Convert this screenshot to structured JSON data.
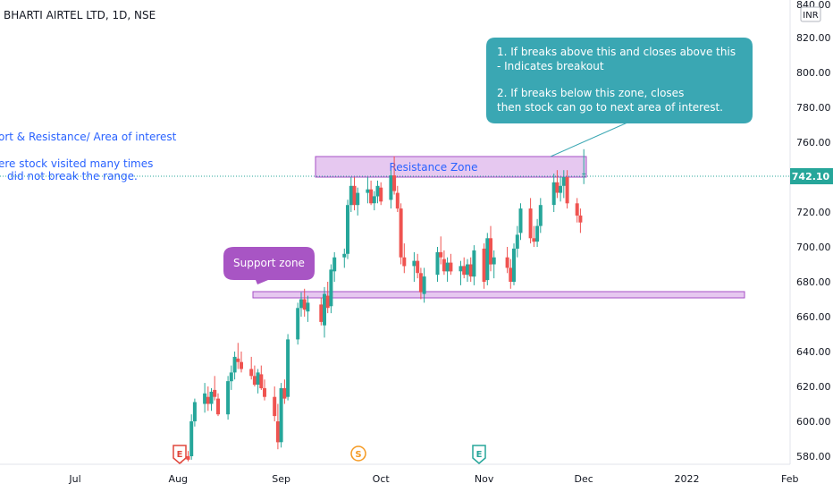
{
  "header": {
    "symbol_title": "BHARTI AIRTEL LTD, 1D, NSE"
  },
  "annotations": {
    "left_title": "ort & Resistance/ Area of interest",
    "left_note_line1": "ere stock visited many times",
    "left_note_line2": "did not break the range.",
    "resistance_label": "Resistance Zone",
    "support_label": "Support zone",
    "callout_line1": "1. If breaks above this and closes above this",
    "callout_line2": "- Indicates breakout",
    "callout_line3": "2. If breaks below this zone, closes",
    "callout_line4": "then stock can go to next area of interest."
  },
  "price_axis": {
    "currency": "INR",
    "top_label": "840.00",
    "last_price": "742.10",
    "ticks": [
      "820.00",
      "800.00",
      "780.00",
      "760.00",
      "740.00",
      "720.00",
      "700.00",
      "680.00",
      "660.00",
      "640.00",
      "620.00",
      "600.00",
      "580.00"
    ]
  },
  "time_axis": {
    "labels": [
      "Jul",
      "Aug",
      "Sep",
      "Oct",
      "Nov",
      "Dec",
      "2022",
      "Feb"
    ]
  },
  "event_markers": [
    {
      "letter": "E",
      "type": "earnings"
    },
    {
      "letter": "S",
      "type": "split"
    },
    {
      "letter": "E",
      "type": "earnings"
    }
  ],
  "colors": {
    "up_candle": "#26a69a",
    "down_candle": "#ef5350",
    "zone_fill": "#e6c8f0",
    "zone_stroke": "#a64fc6",
    "support_bubble": "#a855c4",
    "callout_fill": "#3aa7b3",
    "annotation_text": "#2962ff",
    "price_badge": "#26a69a"
  },
  "chart_data": {
    "type": "candlestick",
    "title": "BHARTI AIRTEL LTD, 1D, NSE",
    "ylim": [
      576,
      840
    ],
    "x_ticks": [
      "Jul",
      "Aug",
      "Sep",
      "Oct",
      "Nov",
      "Dec",
      "2022",
      "Feb"
    ],
    "y_ticks": [
      580,
      600,
      620,
      640,
      660,
      680,
      700,
      720,
      740,
      760,
      780,
      800,
      820
    ],
    "last_price": 742.1,
    "zones": [
      {
        "name": "Resistance Zone",
        "from": 740,
        "to": 752
      },
      {
        "name": "Support zone",
        "from": 672,
        "to": 676
      }
    ],
    "candles": [
      {
        "d": "2021-08-02",
        "o": 579,
        "h": 582,
        "l": 576,
        "c": 578
      },
      {
        "d": "2021-08-04",
        "o": 580,
        "h": 583,
        "l": 577,
        "c": 578
      },
      {
        "d": "2021-08-05",
        "o": 580,
        "h": 604,
        "l": 578,
        "c": 600
      },
      {
        "d": "2021-08-06",
        "o": 600,
        "h": 613,
        "l": 597,
        "c": 611
      },
      {
        "d": "2021-08-09",
        "o": 610,
        "h": 622,
        "l": 605,
        "c": 616
      },
      {
        "d": "2021-08-10",
        "o": 614,
        "h": 620,
        "l": 606,
        "c": 610
      },
      {
        "d": "2021-08-11",
        "o": 610,
        "h": 619,
        "l": 606,
        "c": 617
      },
      {
        "d": "2021-08-12",
        "o": 618,
        "h": 626,
        "l": 612,
        "c": 614
      },
      {
        "d": "2021-08-13",
        "o": 613,
        "h": 616,
        "l": 603,
        "c": 604
      },
      {
        "d": "2021-08-16",
        "o": 604,
        "h": 626,
        "l": 601,
        "c": 623
      },
      {
        "d": "2021-08-17",
        "o": 623,
        "h": 632,
        "l": 618,
        "c": 628
      },
      {
        "d": "2021-08-18",
        "o": 628,
        "h": 640,
        "l": 624,
        "c": 637
      },
      {
        "d": "2021-08-19",
        "o": 636,
        "h": 645,
        "l": 630,
        "c": 634
      },
      {
        "d": "2021-08-20",
        "o": 634,
        "h": 640,
        "l": 628,
        "c": 630
      },
      {
        "d": "2021-08-23",
        "o": 630,
        "h": 637,
        "l": 624,
        "c": 626
      },
      {
        "d": "2021-08-24",
        "o": 626,
        "h": 632,
        "l": 620,
        "c": 621
      },
      {
        "d": "2021-08-25",
        "o": 621,
        "h": 630,
        "l": 616,
        "c": 628
      },
      {
        "d": "2021-08-26",
        "o": 627,
        "h": 632,
        "l": 618,
        "c": 619
      },
      {
        "d": "2021-08-27",
        "o": 619,
        "h": 624,
        "l": 612,
        "c": 614
      },
      {
        "d": "2021-08-30",
        "o": 614,
        "h": 620,
        "l": 600,
        "c": 603
      },
      {
        "d": "2021-08-31",
        "o": 600,
        "h": 610,
        "l": 584,
        "c": 588
      },
      {
        "d": "2021-09-01",
        "o": 588,
        "h": 622,
        "l": 585,
        "c": 619
      },
      {
        "d": "2021-09-02",
        "o": 619,
        "h": 624,
        "l": 610,
        "c": 613
      },
      {
        "d": "2021-09-03",
        "o": 614,
        "h": 650,
        "l": 612,
        "c": 647
      },
      {
        "d": "2021-09-06",
        "o": 647,
        "h": 668,
        "l": 644,
        "c": 665
      },
      {
        "d": "2021-09-07",
        "o": 665,
        "h": 674,
        "l": 660,
        "c": 670
      },
      {
        "d": "2021-09-08",
        "o": 670,
        "h": 676,
        "l": 660,
        "c": 664
      },
      {
        "d": "2021-09-09",
        "o": 663,
        "h": 672,
        "l": 657,
        "c": 668
      },
      {
        "d": "2021-09-13",
        "o": 667,
        "h": 671,
        "l": 655,
        "c": 657
      },
      {
        "d": "2021-09-14",
        "o": 655,
        "h": 677,
        "l": 648,
        "c": 673
      },
      {
        "d": "2021-09-15",
        "o": 672,
        "h": 680,
        "l": 662,
        "c": 665
      },
      {
        "d": "2021-09-16",
        "o": 666,
        "h": 690,
        "l": 662,
        "c": 687
      },
      {
        "d": "2021-09-17",
        "o": 686,
        "h": 697,
        "l": 680,
        "c": 694
      },
      {
        "d": "2021-09-20",
        "o": 694,
        "h": 699,
        "l": 688,
        "c": 696
      },
      {
        "d": "2021-09-21",
        "o": 696,
        "h": 727,
        "l": 693,
        "c": 724
      },
      {
        "d": "2021-09-22",
        "o": 724,
        "h": 740,
        "l": 720,
        "c": 735
      },
      {
        "d": "2021-09-23",
        "o": 735,
        "h": 740,
        "l": 721,
        "c": 724
      },
      {
        "d": "2021-09-24",
        "o": 724,
        "h": 734,
        "l": 718,
        "c": 731
      },
      {
        "d": "2021-09-27",
        "o": 731,
        "h": 740,
        "l": 725,
        "c": 733
      },
      {
        "d": "2021-09-28",
        "o": 733,
        "h": 738,
        "l": 724,
        "c": 725
      },
      {
        "d": "2021-09-29",
        "o": 725,
        "h": 732,
        "l": 721,
        "c": 729
      },
      {
        "d": "2021-09-30",
        "o": 729,
        "h": 738,
        "l": 725,
        "c": 735
      },
      {
        "d": "2021-10-01",
        "o": 734,
        "h": 737,
        "l": 724,
        "c": 726
      },
      {
        "d": "2021-10-04",
        "o": 727,
        "h": 744,
        "l": 722,
        "c": 741
      },
      {
        "d": "2021-10-05",
        "o": 741,
        "h": 752,
        "l": 730,
        "c": 732
      },
      {
        "d": "2021-10-06",
        "o": 731,
        "h": 735,
        "l": 720,
        "c": 722
      },
      {
        "d": "2021-10-07",
        "o": 722,
        "h": 725,
        "l": 690,
        "c": 694
      },
      {
        "d": "2021-10-08",
        "o": 694,
        "h": 702,
        "l": 685,
        "c": 689
      },
      {
        "d": "2021-10-11",
        "o": 689,
        "h": 697,
        "l": 680,
        "c": 692
      },
      {
        "d": "2021-10-12",
        "o": 692,
        "h": 696,
        "l": 682,
        "c": 685
      },
      {
        "d": "2021-10-13",
        "o": 685,
        "h": 688,
        "l": 670,
        "c": 674
      },
      {
        "d": "2021-10-14",
        "o": 673,
        "h": 688,
        "l": 668,
        "c": 683
      },
      {
        "d": "2021-10-18",
        "o": 684,
        "h": 700,
        "l": 680,
        "c": 697
      },
      {
        "d": "2021-10-19",
        "o": 697,
        "h": 706,
        "l": 690,
        "c": 694
      },
      {
        "d": "2021-10-20",
        "o": 693,
        "h": 698,
        "l": 684,
        "c": 686
      },
      {
        "d": "2021-10-21",
        "o": 686,
        "h": 694,
        "l": 680,
        "c": 691
      },
      {
        "d": "2021-10-22",
        "o": 691,
        "h": 696,
        "l": 684,
        "c": 686
      },
      {
        "d": "2021-10-25",
        "o": 686,
        "h": 692,
        "l": 678,
        "c": 689
      },
      {
        "d": "2021-10-26",
        "o": 689,
        "h": 694,
        "l": 682,
        "c": 684
      },
      {
        "d": "2021-10-27",
        "o": 684,
        "h": 693,
        "l": 680,
        "c": 690
      },
      {
        "d": "2021-10-28",
        "o": 690,
        "h": 694,
        "l": 680,
        "c": 683
      },
      {
        "d": "2021-10-29",
        "o": 683,
        "h": 701,
        "l": 678,
        "c": 698
      },
      {
        "d": "2021-11-01",
        "o": 699,
        "h": 702,
        "l": 676,
        "c": 680
      },
      {
        "d": "2021-11-02",
        "o": 681,
        "h": 708,
        "l": 678,
        "c": 705
      },
      {
        "d": "2021-11-03",
        "o": 705,
        "h": 712,
        "l": 686,
        "c": 690
      },
      {
        "d": "2021-11-04",
        "o": 690,
        "h": 698,
        "l": 682,
        "c": 694
      },
      {
        "d": "2021-11-08",
        "o": 694,
        "h": 700,
        "l": 685,
        "c": 688
      },
      {
        "d": "2021-11-09",
        "o": 688,
        "h": 693,
        "l": 676,
        "c": 680
      },
      {
        "d": "2021-11-10",
        "o": 680,
        "h": 702,
        "l": 678,
        "c": 699
      },
      {
        "d": "2021-11-11",
        "o": 699,
        "h": 712,
        "l": 694,
        "c": 707
      },
      {
        "d": "2021-11-12",
        "o": 708,
        "h": 725,
        "l": 704,
        "c": 722
      },
      {
        "d": "2021-11-15",
        "o": 722,
        "h": 728,
        "l": 702,
        "c": 705
      },
      {
        "d": "2021-11-16",
        "o": 705,
        "h": 712,
        "l": 700,
        "c": 703
      },
      {
        "d": "2021-11-17",
        "o": 703,
        "h": 716,
        "l": 700,
        "c": 712
      },
      {
        "d": "2021-11-18",
        "o": 712,
        "h": 728,
        "l": 708,
        "c": 724
      },
      {
        "d": "2021-11-22",
        "o": 724,
        "h": 742,
        "l": 720,
        "c": 737
      },
      {
        "d": "2021-11-23",
        "o": 737,
        "h": 744,
        "l": 728,
        "c": 731
      },
      {
        "d": "2021-11-24",
        "o": 731,
        "h": 740,
        "l": 726,
        "c": 735
      },
      {
        "d": "2021-11-25",
        "o": 735,
        "h": 744,
        "l": 728,
        "c": 740
      },
      {
        "d": "2021-11-26",
        "o": 740,
        "h": 744,
        "l": 722,
        "c": 725
      },
      {
        "d": "2021-11-29",
        "o": 725,
        "h": 728,
        "l": 714,
        "c": 718
      },
      {
        "d": "2021-11-30",
        "o": 718,
        "h": 722,
        "l": 708,
        "c": 714
      },
      {
        "d": "2021-12-01",
        "o": 742,
        "h": 756,
        "l": 736,
        "c": 742.1
      }
    ]
  }
}
